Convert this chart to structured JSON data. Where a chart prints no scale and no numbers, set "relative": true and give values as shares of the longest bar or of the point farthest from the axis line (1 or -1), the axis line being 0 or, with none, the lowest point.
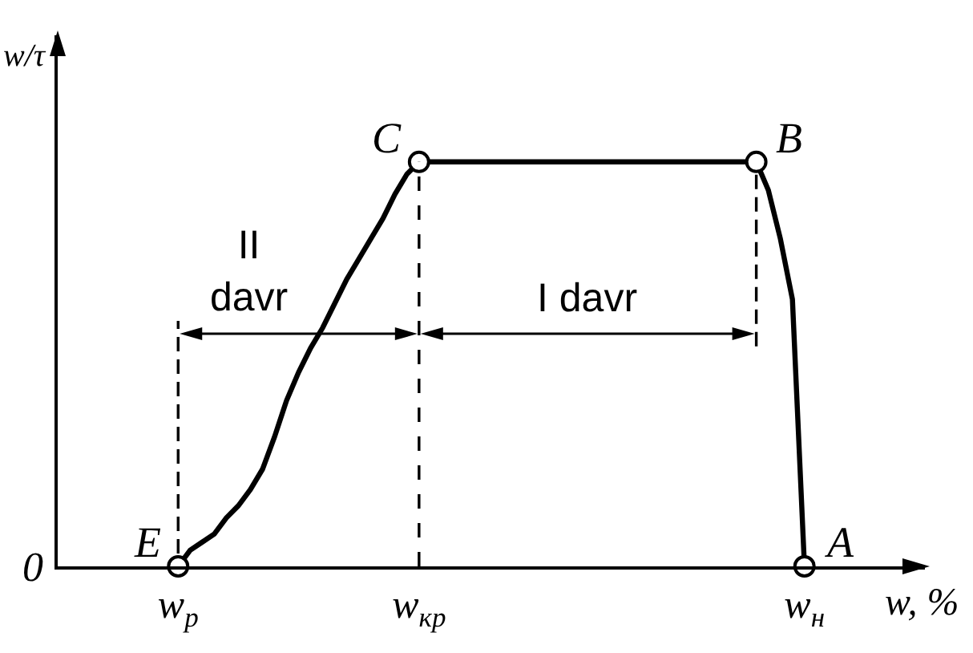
{
  "chart_data": {
    "type": "line",
    "relative": true,
    "ylabel": "w/τ",
    "xlabel": "w, %",
    "categories": [
      null,
      null,
      null,
      null,
      null,
      null,
      null,
      null,
      null,
      null,
      "w$_{р}$",
      null,
      null,
      null,
      null,
      null,
      null,
      null,
      null,
      null,
      null,
      null,
      null,
      null,
      null,
      null,
      null,
      null,
      null,
      null,
      "w$_{кр}$",
      null,
      null,
      null,
      null,
      null,
      null,
      null,
      null,
      null,
      null,
      null,
      null,
      null,
      null,
      null,
      null,
      null,
      null,
      null,
      null,
      null,
      null,
      null,
      null,
      null,
      null,
      null,
      null,
      null,
      null,
      null,
      "w$_{н}$",
      null,
      null,
      null,
      null,
      null,
      null,
      null,
      null,
      null,
      null
    ],
    "series": [
      {
        "color": "#000000",
        "values": [
          null,
          null,
          null,
          null,
          null,
          null,
          null,
          null,
          null,
          null,
          0,
          0.04,
          0.06,
          0.08,
          0.12,
          0.15,
          0.19,
          0.24,
          0.32,
          0.41,
          0.48,
          0.54,
          0.59,
          0.65,
          0.71,
          0.76,
          0.81,
          0.86,
          0.92,
          0.97,
          1,
          1,
          1,
          1,
          1,
          1,
          1,
          1,
          1,
          1,
          1,
          1,
          1,
          1,
          1,
          1,
          1,
          1,
          1,
          1,
          1,
          1,
          1,
          1,
          1,
          1,
          1,
          1,
          1,
          0.93,
          0.81,
          0.66,
          0,
          null,
          null,
          null,
          null,
          null,
          null,
          null,
          null,
          null,
          null
        ]
      },
      {
        "type": "scatter",
        "color": "#000000",
        "marker": "circle",
        "values": [
          null,
          null,
          null,
          null,
          null,
          null,
          null,
          null,
          null,
          null,
          0,
          null,
          null,
          null,
          null,
          null,
          null,
          null,
          null,
          null,
          null,
          null,
          null,
          null,
          null,
          null,
          null,
          null,
          null,
          null,
          1,
          null,
          null,
          null,
          null,
          null,
          null,
          null,
          null,
          null,
          null,
          null,
          null,
          null,
          null,
          null,
          null,
          null,
          null,
          null,
          null,
          null,
          null,
          null,
          null,
          null,
          null,
          null,
          1,
          null,
          null,
          null,
          0,
          null,
          null,
          null,
          null,
          null,
          null,
          null,
          null,
          null,
          null
        ]
      }
    ],
    "ref_lines": [
      {
        "axis": "x",
        "value": "w$_{кр}$",
        "line_style": "dashed"
      }
    ],
    "annotations": [
      "0",
      {
        "text": "E",
        "x": "w$_{р}$",
        "y": 0
      },
      {
        "text": "C",
        "x": "w$_{кр}$",
        "y": 1
      },
      "B",
      {
        "text": "A",
        "x": "w$_{н}$",
        "y": 0
      },
      "II\ndavr",
      "I davr"
    ]
  }
}
